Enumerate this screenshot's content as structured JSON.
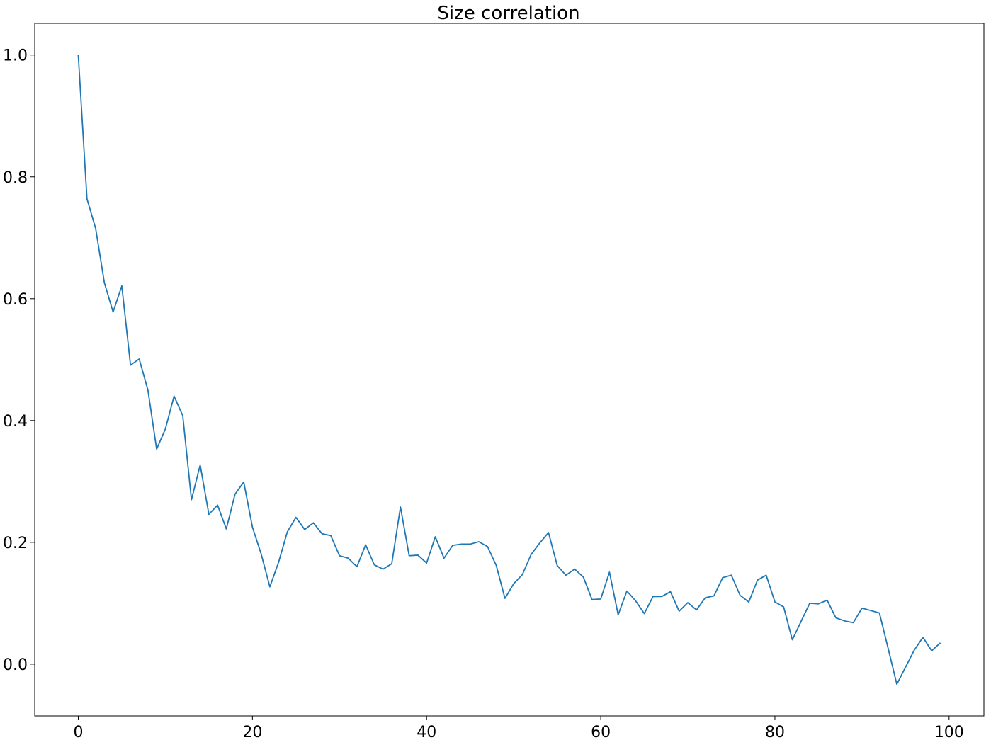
{
  "chart_data": {
    "type": "line",
    "title": "Size correlation",
    "xlabel": "",
    "ylabel": "",
    "xlim": [
      -5,
      104
    ],
    "ylim": [
      -0.085,
      1.052
    ],
    "x_ticks": [
      0,
      20,
      40,
      60,
      80,
      100
    ],
    "x_tick_labels": [
      "0",
      "20",
      "40",
      "60",
      "80",
      "100"
    ],
    "y_ticks": [
      0.0,
      0.2,
      0.4,
      0.6,
      0.8,
      1.0
    ],
    "y_tick_labels": [
      "0.0",
      "0.2",
      "0.4",
      "0.6",
      "0.8",
      "1.0"
    ],
    "grid": false,
    "line_color": "#1f77b4",
    "series": [
      {
        "x": [
          0,
          1,
          2,
          3,
          4,
          5,
          6,
          7,
          8,
          9,
          10,
          11,
          12,
          13,
          14,
          15,
          16,
          17,
          18,
          19,
          20,
          21,
          22,
          23,
          24,
          25,
          26,
          27,
          28,
          29,
          30,
          31,
          32,
          33,
          34,
          35,
          36,
          37,
          38,
          39,
          40,
          41,
          42,
          43,
          44,
          45,
          46,
          47,
          48,
          49,
          50,
          51,
          52,
          53,
          54,
          55,
          56,
          57,
          58,
          59,
          60,
          61,
          62,
          63,
          64,
          65,
          66,
          67,
          68,
          69,
          70,
          71,
          72,
          73,
          74,
          75,
          76,
          77,
          78,
          79,
          80,
          81,
          82,
          83,
          84,
          85,
          86,
          87,
          88,
          89,
          90,
          91,
          92,
          93,
          94,
          95,
          96,
          97,
          98,
          99
        ],
        "values": [
          1.0,
          0.764,
          0.715,
          0.626,
          0.578,
          0.621,
          0.491,
          0.501,
          0.45,
          0.353,
          0.386,
          0.44,
          0.408,
          0.27,
          0.327,
          0.246,
          0.261,
          0.222,
          0.279,
          0.299,
          0.225,
          0.181,
          0.127,
          0.167,
          0.217,
          0.241,
          0.221,
          0.232,
          0.214,
          0.211,
          0.178,
          0.174,
          0.16,
          0.196,
          0.163,
          0.156,
          0.165,
          0.258,
          0.178,
          0.179,
          0.166,
          0.209,
          0.174,
          0.195,
          0.197,
          0.197,
          0.201,
          0.193,
          0.162,
          0.108,
          0.132,
          0.147,
          0.18,
          0.199,
          0.216,
          0.162,
          0.146,
          0.156,
          0.143,
          0.106,
          0.107,
          0.151,
          0.081,
          0.12,
          0.104,
          0.083,
          0.111,
          0.111,
          0.119,
          0.087,
          0.101,
          0.089,
          0.109,
          0.112,
          0.142,
          0.146,
          0.113,
          0.102,
          0.138,
          0.146,
          0.102,
          0.094,
          0.04,
          0.07,
          0.1,
          0.099,
          0.105,
          0.076,
          0.071,
          0.068,
          0.092,
          0.088,
          0.084,
          0.026,
          -0.033,
          -0.005,
          0.023,
          0.044,
          0.022,
          0.035
        ]
      }
    ]
  }
}
